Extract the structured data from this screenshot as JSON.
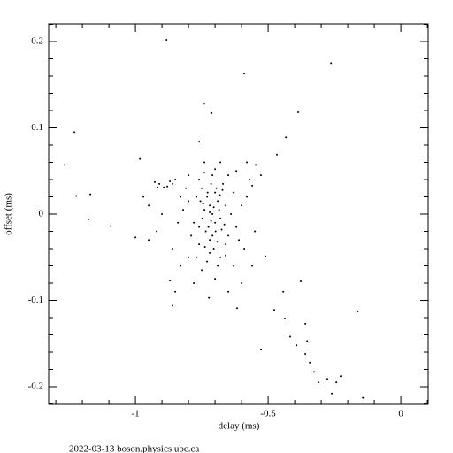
{
  "chart_data": {
    "type": "scatter",
    "x_label": "delay (ms)",
    "y_label": "offset (ms)",
    "footer": "2022-03-13  boson.physics.ubc.ca",
    "color": "#000000",
    "xlim": [
      -1.327,
      0.103
    ],
    "ylim": [
      -0.2205,
      0.2205
    ],
    "xticks": [
      -1,
      -0.5,
      0
    ],
    "yticks": [
      -0.2,
      -0.1,
      0,
      0.1,
      0.2
    ],
    "xminorticks": [
      -1.3,
      -1.2,
      -1.1,
      -0.9,
      -0.8,
      -0.7,
      -0.6,
      -0.4,
      -0.3,
      -0.2,
      -0.1,
      0.1
    ],
    "yminorticks": [
      -0.22,
      -0.18,
      -0.16,
      -0.14,
      -0.12,
      -0.08,
      -0.06,
      -0.04,
      -0.02,
      0.02,
      0.04,
      0.06,
      0.08,
      0.12,
      0.14,
      0.16,
      0.18,
      0.22
    ],
    "x": [
      -0.883,
      -0.263,
      -0.59,
      -1.23,
      -0.74,
      -0.713,
      -0.387,
      -0.433,
      -0.76,
      -1.267,
      -0.983,
      -0.467,
      -0.547,
      -1.223,
      -1.17,
      -1.177,
      -1.0,
      -1.093,
      -0.87,
      -0.86,
      -0.723,
      -0.617,
      -0.527,
      -0.443,
      -0.477,
      -0.437,
      -0.163,
      -0.417,
      -0.393,
      -0.36,
      -0.343,
      -0.327,
      -0.31,
      -0.277,
      -0.243,
      -0.227,
      -0.26,
      -0.353,
      -0.143,
      -0.36,
      -0.377,
      -0.51,
      -0.56,
      -0.527,
      -0.927,
      -0.91,
      -0.893,
      -0.917,
      -0.71,
      -0.72,
      -0.7,
      -0.73,
      -0.69,
      -0.71,
      -0.72,
      -0.7,
      -0.74,
      -0.68,
      -0.715,
      -0.705,
      -0.725,
      -0.695,
      -0.735,
      -0.685,
      -0.745,
      -0.675,
      -0.71,
      -0.72,
      -0.76,
      -0.66,
      -0.77,
      -0.65,
      -0.75,
      -0.67,
      -0.78,
      -0.64,
      -0.76,
      -0.66,
      -0.8,
      -0.62,
      -0.79,
      -0.63,
      -0.82,
      -0.6,
      -0.81,
      -0.61,
      -0.74,
      -0.68,
      -0.73,
      -0.7,
      -0.84,
      -0.58,
      -0.83,
      -0.59,
      -0.77,
      -0.65,
      -0.86,
      -0.87,
      -0.85,
      -0.88,
      -0.76,
      -0.66,
      -0.72,
      -0.705,
      -0.715,
      -0.698,
      -0.728,
      -0.692,
      -0.738,
      -0.682,
      -0.748,
      -0.672,
      -0.755,
      -0.665,
      -0.69,
      -0.75,
      -0.63,
      -0.8,
      -0.57,
      -0.55,
      -0.9,
      -0.92,
      -0.95,
      -0.6,
      -0.78,
      -0.7,
      -0.62,
      -0.8,
      -0.97,
      -0.95,
      -0.86,
      -0.83,
      -0.56,
      -0.58,
      -0.74,
      -0.68,
      -0.85,
      -0.65
    ],
    "y": [
      0.202,
      0.175,
      0.163,
      0.095,
      0.128,
      0.117,
      0.118,
      0.089,
      0.084,
      0.057,
      0.064,
      0.069,
      0.057,
      0.021,
      0.023,
      -0.006,
      -0.027,
      -0.014,
      -0.077,
      -0.106,
      -0.097,
      -0.109,
      -0.157,
      -0.09,
      -0.111,
      -0.121,
      -0.113,
      -0.142,
      -0.152,
      -0.162,
      -0.172,
      -0.183,
      -0.195,
      -0.191,
      -0.195,
      -0.188,
      -0.208,
      -0.147,
      -0.213,
      -0.127,
      -0.078,
      -0.049,
      0.033,
      0.045,
      0.037,
      0.035,
      0.031,
      0.031,
      0.0,
      0.01,
      -0.01,
      0.02,
      0.015,
      -0.025,
      -0.03,
      0.025,
      0.005,
      -0.005,
      0.035,
      -0.04,
      -0.015,
      0.03,
      -0.02,
      0.005,
      0.012,
      -0.018,
      0.045,
      -0.045,
      -0.015,
      0.01,
      0.02,
      -0.025,
      0.03,
      0.035,
      -0.01,
      0.0,
      -0.035,
      -0.035,
      0.015,
      -0.015,
      -0.025,
      0.025,
      0.005,
      0.01,
      0.03,
      -0.03,
      0.048,
      -0.05,
      -0.055,
      0.052,
      -0.01,
      0.02,
      0.02,
      -0.04,
      -0.05,
      0.045,
      0.035,
      0.038,
      0.04,
      0.032,
      0.04,
      -0.048,
      0.002,
      0.008,
      -0.008,
      -0.02,
      0.025,
      -0.032,
      -0.038,
      0.022,
      -0.005,
      0.028,
      0.015,
      -0.012,
      -0.06,
      -0.065,
      -0.06,
      -0.05,
      0.04,
      -0.02,
      0.0,
      -0.02,
      0.01,
      -0.08,
      -0.08,
      -0.075,
      0.05,
      0.045,
      0.02,
      -0.03,
      -0.04,
      -0.06,
      -0.06,
      0.06,
      0.06,
      0.06,
      -0.09,
      -0.09
    ]
  }
}
